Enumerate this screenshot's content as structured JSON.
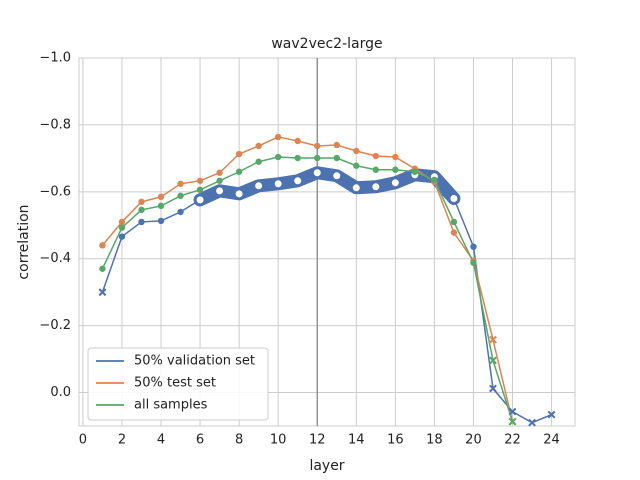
{
  "chart_data": {
    "type": "line",
    "title": "wav2vec2-large",
    "x_label": "layer",
    "y_label": "correlation",
    "x": [
      1,
      2,
      3,
      4,
      5,
      6,
      7,
      8,
      9,
      10,
      11,
      12,
      13,
      14,
      15,
      16,
      17,
      18,
      19,
      20,
      21,
      22,
      23,
      24
    ],
    "series": [
      {
        "name": "50% validation set",
        "color": "#4c72b0",
        "highlight": [
          6,
          19
        ],
        "values": [
          -0.3,
          -0.466,
          -0.51,
          -0.513,
          -0.54,
          -0.576,
          -0.603,
          -0.594,
          -0.618,
          -0.624,
          -0.633,
          -0.657,
          -0.648,
          -0.612,
          -0.615,
          -0.627,
          -0.651,
          -0.645,
          -0.58,
          -0.436,
          -0.012,
          0.057,
          0.09,
          0.066
        ],
        "markers": [
          "x",
          "o",
          "o",
          "o",
          "o",
          "o",
          "o",
          "o",
          "o",
          "o",
          "o",
          "o",
          "o",
          "o",
          "o",
          "o",
          "o",
          "o",
          "o",
          "o",
          "x",
          "x",
          "x",
          "x"
        ]
      },
      {
        "name": "50% test set",
        "color": "#dd8452",
        "values": [
          -0.44,
          -0.51,
          -0.57,
          -0.585,
          -0.624,
          -0.633,
          -0.657,
          -0.713,
          -0.737,
          -0.764,
          -0.752,
          -0.737,
          -0.74,
          -0.722,
          -0.707,
          -0.704,
          -0.669,
          -0.63,
          -0.478,
          -0.394,
          -0.158,
          0.087,
          null,
          null
        ],
        "markers": [
          "o",
          "o",
          "o",
          "o",
          "o",
          "o",
          "o",
          "o",
          "o",
          "o",
          "o",
          "o",
          "o",
          "o",
          "o",
          "o",
          "o",
          "o",
          "o",
          "o",
          "x",
          "x",
          null,
          null
        ]
      },
      {
        "name": "all samples",
        "color": "#55a868",
        "values": [
          -0.37,
          -0.493,
          -0.546,
          -0.558,
          -0.588,
          -0.606,
          -0.633,
          -0.66,
          -0.69,
          -0.704,
          -0.701,
          -0.701,
          -0.701,
          -0.678,
          -0.666,
          -0.666,
          -0.66,
          -0.636,
          -0.51,
          -0.388,
          -0.096,
          0.087,
          null,
          null
        ],
        "markers": [
          "o",
          "o",
          "o",
          "o",
          "o",
          "o",
          "o",
          "o",
          "o",
          "o",
          "o",
          "o",
          "o",
          "o",
          "o",
          "o",
          "o",
          "o",
          "o",
          "o",
          "x",
          "x",
          null,
          null
        ]
      }
    ],
    "xlim": [
      -0.2,
      25.2
    ],
    "xticks": [
      0,
      2,
      4,
      6,
      8,
      10,
      12,
      14,
      16,
      18,
      20,
      22,
      24
    ],
    "ylim": [
      0.1,
      -1.0
    ],
    "yticks": [
      {
        "value": -1.0,
        "label": "−1.0"
      },
      {
        "value": -0.8,
        "label": "−0.8"
      },
      {
        "value": -0.6,
        "label": "−0.6"
      },
      {
        "value": -0.4,
        "label": "−0.4"
      },
      {
        "value": -0.2,
        "label": "−0.2"
      },
      {
        "value": 0.0,
        "label": "0.0"
      }
    ],
    "vline": 12,
    "grid": true,
    "legend": "lower left"
  }
}
